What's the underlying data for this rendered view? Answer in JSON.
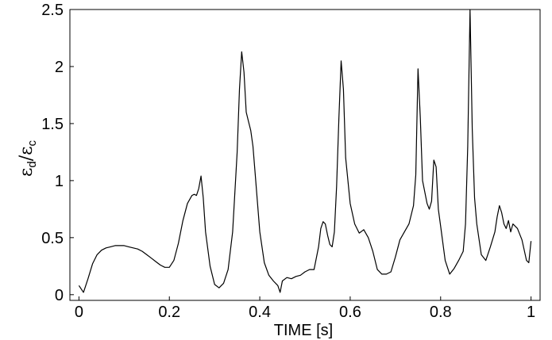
{
  "chart_data": {
    "type": "line",
    "title": "",
    "xlabel": "TIME [s]",
    "ylabel": "εd/εc",
    "ylabel_parts": {
      "num_symbol": "ε",
      "num_sub": "d",
      "slash": "/",
      "den_symbol": "ε",
      "den_sub": "c"
    },
    "xlim": [
      -0.02,
      1.02
    ],
    "ylim": [
      -0.05,
      2.5
    ],
    "x_ticks": [
      0,
      0.2,
      0.4,
      0.6,
      0.8,
      1
    ],
    "x_tick_labels": [
      "0",
      "0.2",
      "0.4",
      "0.6",
      "0.8",
      "1"
    ],
    "y_ticks": [
      0,
      0.5,
      1,
      1.5,
      2,
      2.5
    ],
    "y_tick_labels": [
      "0",
      "0.5",
      "1",
      "1.5",
      "2",
      "2.5"
    ],
    "grid": false,
    "legend": "none",
    "line_color": "#000000",
    "series": [
      {
        "x": [
          0.0,
          0.01,
          0.02,
          0.03,
          0.04,
          0.05,
          0.06,
          0.07,
          0.08,
          0.09,
          0.1,
          0.11,
          0.12,
          0.13,
          0.14,
          0.15,
          0.16,
          0.17,
          0.18,
          0.19,
          0.2,
          0.21,
          0.22,
          0.23,
          0.24,
          0.25,
          0.255,
          0.26,
          0.265,
          0.27,
          0.275,
          0.28,
          0.29,
          0.3,
          0.31,
          0.32,
          0.33,
          0.34,
          0.35,
          0.355,
          0.36,
          0.365,
          0.37,
          0.375,
          0.38,
          0.385,
          0.39,
          0.4,
          0.41,
          0.42,
          0.43,
          0.44,
          0.445,
          0.45,
          0.46,
          0.47,
          0.48,
          0.49,
          0.5,
          0.51,
          0.52,
          0.53,
          0.535,
          0.54,
          0.545,
          0.55,
          0.555,
          0.56,
          0.565,
          0.57,
          0.575,
          0.58,
          0.585,
          0.59,
          0.6,
          0.61,
          0.62,
          0.63,
          0.64,
          0.65,
          0.66,
          0.67,
          0.68,
          0.69,
          0.7,
          0.71,
          0.72,
          0.73,
          0.74,
          0.745,
          0.75,
          0.755,
          0.76,
          0.77,
          0.775,
          0.78,
          0.785,
          0.79,
          0.795,
          0.8,
          0.81,
          0.82,
          0.83,
          0.84,
          0.85,
          0.855,
          0.86,
          0.865,
          0.87,
          0.875,
          0.88,
          0.89,
          0.9,
          0.91,
          0.92,
          0.925,
          0.93,
          0.935,
          0.94,
          0.945,
          0.95,
          0.955,
          0.96,
          0.97,
          0.98,
          0.99,
          0.995,
          1.0
        ],
        "y": [
          0.08,
          0.02,
          0.14,
          0.27,
          0.35,
          0.39,
          0.41,
          0.42,
          0.43,
          0.43,
          0.43,
          0.42,
          0.41,
          0.4,
          0.38,
          0.35,
          0.32,
          0.29,
          0.26,
          0.24,
          0.24,
          0.3,
          0.45,
          0.65,
          0.8,
          0.87,
          0.88,
          0.87,
          0.93,
          1.04,
          0.85,
          0.55,
          0.25,
          0.09,
          0.06,
          0.1,
          0.22,
          0.55,
          1.25,
          1.8,
          2.13,
          1.95,
          1.6,
          1.52,
          1.44,
          1.3,
          1.05,
          0.55,
          0.28,
          0.17,
          0.12,
          0.08,
          0.02,
          0.12,
          0.15,
          0.14,
          0.16,
          0.17,
          0.2,
          0.22,
          0.22,
          0.42,
          0.58,
          0.64,
          0.62,
          0.52,
          0.44,
          0.42,
          0.55,
          0.95,
          1.55,
          2.05,
          1.8,
          1.2,
          0.8,
          0.62,
          0.54,
          0.57,
          0.5,
          0.38,
          0.22,
          0.18,
          0.18,
          0.2,
          0.33,
          0.48,
          0.55,
          0.62,
          0.78,
          1.05,
          1.98,
          1.55,
          1.0,
          0.8,
          0.75,
          0.82,
          1.18,
          1.12,
          0.75,
          0.6,
          0.3,
          0.18,
          0.23,
          0.3,
          0.38,
          0.62,
          1.3,
          2.5,
          1.45,
          0.85,
          0.62,
          0.35,
          0.3,
          0.42,
          0.55,
          0.68,
          0.78,
          0.72,
          0.62,
          0.58,
          0.65,
          0.55,
          0.62,
          0.58,
          0.48,
          0.3,
          0.28,
          0.47
        ]
      }
    ]
  }
}
